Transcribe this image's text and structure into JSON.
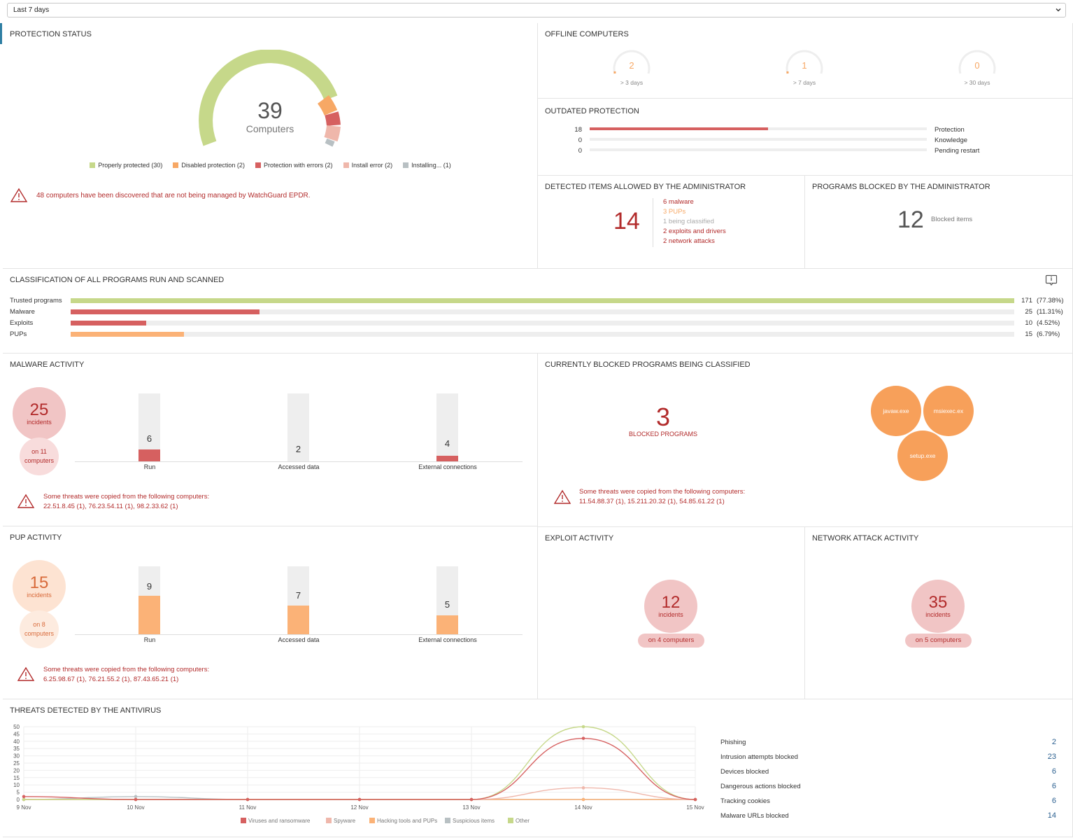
{
  "filter": {
    "value": "Last 7 days"
  },
  "protection_status": {
    "title": "PROTECTION STATUS",
    "total": "39",
    "total_label": "Computers",
    "legend": [
      {
        "label": "Properly protected (30)",
        "color": "#c6d88a"
      },
      {
        "label": "Disabled protection (2)",
        "color": "#f7a865"
      },
      {
        "label": "Protection with errors (2)",
        "color": "#d66060"
      },
      {
        "label": "Install error (2)",
        "color": "#efb7ab"
      },
      {
        "label": "Installing... (1)",
        "color": "#b8c0c3"
      }
    ],
    "warning_main": "48 computers have been discovered that are not being managed",
    "warning_link": "by WatchGuard EPDR."
  },
  "offline": {
    "title": "OFFLINE COMPUTERS",
    "items": [
      {
        "value": "2",
        "label": "> 3 days"
      },
      {
        "value": "1",
        "label": "> 7 days"
      },
      {
        "value": "0",
        "label": "> 30 days"
      }
    ]
  },
  "outdated": {
    "title": "OUTDATED PROTECTION",
    "rows": [
      {
        "count": "18",
        "label": "Protection",
        "fraction": 0.53
      },
      {
        "count": "0",
        "label": "Knowledge",
        "fraction": 0
      },
      {
        "count": "0",
        "label": "Pending restart",
        "fraction": 0
      }
    ]
  },
  "allowed": {
    "title": "DETECTED ITEMS ALLOWED BY THE ADMINISTRATOR",
    "total": "14",
    "items": [
      {
        "text": "6 malware",
        "color": "#b22b2b"
      },
      {
        "text": "3 PUPs",
        "color": "#f7a865"
      },
      {
        "text": "1 being classified",
        "color": "#aaaaaa"
      },
      {
        "text": "2 exploits and drivers",
        "color": "#b22b2b"
      },
      {
        "text": "2 network attacks",
        "color": "#b22b2b"
      }
    ]
  },
  "blocked_admin": {
    "title": "PROGRAMS BLOCKED BY THE ADMINISTRATOR",
    "value": "12",
    "label": "Blocked items"
  },
  "classification": {
    "title": "CLASSIFICATION OF ALL PROGRAMS RUN AND SCANNED",
    "rows": [
      {
        "label": "Trusted programs",
        "count": "171",
        "pct": "(77.38%)",
        "fraction": 1.0,
        "color": "#c6d88a"
      },
      {
        "label": "Malware",
        "count": "25",
        "pct": "(11.31%)",
        "fraction": 0.2,
        "color": "#d66060"
      },
      {
        "label": "Exploits",
        "count": "10",
        "pct": "(4.52%)",
        "fraction": 0.08,
        "color": "#d66060"
      },
      {
        "label": "PUPs",
        "count": "15",
        "pct": "(6.79%)",
        "fraction": 0.12,
        "color": "#fbb277"
      }
    ]
  },
  "malware": {
    "title": "MALWARE ACTIVITY",
    "incidents": "25",
    "incidents_label": "incidents",
    "computers_label": "on 11 computers",
    "bars": [
      {
        "label": "Run",
        "value": "6",
        "fraction": 0.18
      },
      {
        "label": "Accessed data",
        "value": "2",
        "fraction": 0
      },
      {
        "label": "External connections",
        "value": "4",
        "fraction": 0.08
      }
    ],
    "warning_title": "Some threats were copied from the following computers:",
    "warning_list": "22.51.8.45 (1), 76.23.54.11 (1), 98.2.33.62 (1)"
  },
  "blocked_classified": {
    "title": "CURRENTLY BLOCKED PROGRAMS BEING CLASSIFIED",
    "value": "3",
    "label": "BLOCKED PROGRAMS",
    "bubbles": [
      "javaw.exe",
      "msiexec.ex",
      "setup.exe"
    ],
    "warning_title": "Some threats were copied from the following computers:",
    "warning_list": "11.54.88.37 (1), 15.211.20.32 (1), 54.85.61.22 (1)"
  },
  "pup": {
    "title": "PUP ACTIVITY",
    "incidents": "15",
    "incidents_label": "incidents",
    "computers_label": "on 8 computers",
    "bars": [
      {
        "label": "Run",
        "value": "9",
        "fraction": 0.57
      },
      {
        "label": "Accessed data",
        "value": "7",
        "fraction": 0.42
      },
      {
        "label": "External connections",
        "value": "5",
        "fraction": 0.28
      }
    ],
    "warning_title": "Some threats were copied from the following computers:",
    "warning_list": "6.25.98.67 (1), 76.21.55.2 (1), 87.43.65.21 (1)"
  },
  "exploit": {
    "title": "EXPLOIT ACTIVITY",
    "incidents": "12",
    "incidents_label": "incidents",
    "computers_label": "on 4 computers"
  },
  "network": {
    "title": "NETWORK ATTACK ACTIVITY",
    "incidents": "35",
    "incidents_label": "incidents",
    "computers_label": "on 5 computers"
  },
  "threats": {
    "title": "THREATS DETECTED BY THE ANTIVIRUS",
    "stats": [
      {
        "label": "Phishing",
        "value": "2"
      },
      {
        "label": "Intrusion attempts blocked",
        "value": "23"
      },
      {
        "label": "Devices blocked",
        "value": "6"
      },
      {
        "label": "Dangerous actions blocked",
        "value": "6"
      },
      {
        "label": "Tracking cookies",
        "value": "6"
      },
      {
        "label": "Malware URLs blocked",
        "value": "14"
      }
    ]
  },
  "chart_data": {
    "type": "line",
    "x": [
      "9 Nov",
      "10 Nov",
      "11 Nov",
      "12 Nov",
      "13 Nov",
      "14 Nov",
      "15 Nov"
    ],
    "ylim": [
      0,
      50
    ],
    "yticks": [
      0,
      5,
      10,
      15,
      20,
      25,
      30,
      35,
      40,
      45,
      50
    ],
    "series": [
      {
        "name": "Viruses and ransomware",
        "color": "#d66060",
        "values": [
          2,
          0,
          0,
          0,
          0,
          42,
          0
        ]
      },
      {
        "name": "Spyware",
        "color": "#efb7ab",
        "values": [
          0,
          0,
          0,
          0,
          0,
          8,
          0
        ]
      },
      {
        "name": "Hacking tools and PUPs",
        "color": "#fbb277",
        "values": [
          0,
          0,
          0,
          0,
          0,
          0,
          0
        ]
      },
      {
        "name": "Suspicious items",
        "color": "#b8c0c3",
        "values": [
          0,
          2,
          0,
          0,
          0,
          0,
          0
        ]
      },
      {
        "name": "Other",
        "color": "#c6d88a",
        "values": [
          0,
          0,
          0,
          0,
          0,
          50,
          0
        ]
      }
    ],
    "grid": true,
    "legend": "bottom"
  }
}
